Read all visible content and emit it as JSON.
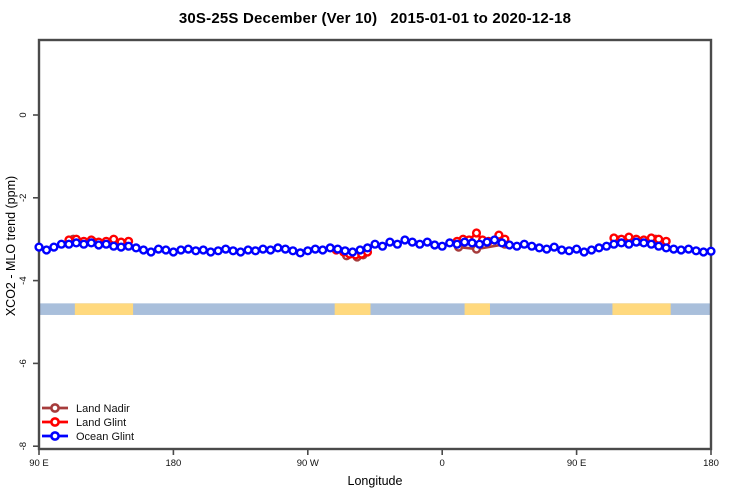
{
  "title": "30S-25S December (Ver 10)   2015-01-01 to 2020-12-18",
  "chart_data": {
    "type": "scatter",
    "title": "30S-25S December (Ver 10)   2015-01-01 to 2020-12-18",
    "xlabel": "Longitude",
    "ylabel": "XCO2 - MLO trend (ppm)",
    "x_axis_note": "longitude axis spans 450 degrees starting at 90E, wrapping east through 180, 90W, 0, 90E to 180",
    "xlim_unwrapped_deg": [
      90,
      540
    ],
    "ylim": [
      -8.1,
      1.8
    ],
    "grid": false,
    "legend_position": "bottom-left",
    "x_ticks": [
      {
        "lon": 90,
        "label": "90 E"
      },
      {
        "lon": 180,
        "label": "180"
      },
      {
        "lon": 270,
        "label": "90 W"
      },
      {
        "lon": 360,
        "label": "0"
      },
      {
        "lon": 450,
        "label": "90 E"
      },
      {
        "lon": 540,
        "label": "180"
      }
    ],
    "y_ticks": [
      {
        "v": 0,
        "label": "0"
      },
      {
        "v": -2,
        "label": "-2"
      },
      {
        "v": -4,
        "label": "-4"
      },
      {
        "v": -6,
        "label": "-6"
      },
      {
        "v": -8,
        "label": "-8"
      }
    ],
    "band": {
      "description": "surface-type strip: blue = ocean, tan = land",
      "y_range": [
        -4.55,
        -4.83
      ],
      "ocean_color": "#A9BFDB",
      "land_color": "#FFD97E",
      "land_segments_lon": [
        [
          114,
          153
        ],
        [
          288,
          312
        ],
        [
          375,
          392
        ],
        [
          474,
          513
        ]
      ]
    },
    "series": [
      {
        "name": "Land Nadir",
        "color": "#A63C3C",
        "segments": [
          [
            [
              113,
              -3.0
            ],
            [
              126,
              -3.05
            ],
            [
              138,
              -3.07
            ],
            [
              149,
              -3.09
            ]
          ],
          [
            [
              296,
              -3.4
            ],
            [
              303,
              -3.43
            ],
            [
              307,
              -3.38
            ]
          ],
          [
            [
              371,
              -3.19
            ],
            [
              383,
              -3.24
            ],
            [
              402,
              -3.12
            ]
          ],
          [
            [
              478,
              -3.02
            ],
            [
              492,
              -3.05
            ],
            [
              503,
              -3.0
            ]
          ]
        ]
      },
      {
        "name": "Land Glint",
        "color": "#FF0000",
        "segments": [
          [
            [
              110,
              -3.02
            ],
            [
              115,
              -3.0
            ],
            [
              120,
              -3.05
            ],
            [
              125,
              -3.02
            ],
            [
              130,
              -3.07
            ],
            [
              135,
              -3.05
            ],
            [
              140,
              -3.0
            ],
            [
              145,
              -3.07
            ],
            [
              150,
              -3.05
            ]
          ],
          [
            [
              289,
              -3.26
            ],
            [
              294,
              -3.31
            ],
            [
              298,
              -3.36
            ],
            [
              302,
              -3.38
            ],
            [
              306,
              -3.36
            ],
            [
              310,
              -3.31
            ]
          ],
          [
            [
              370,
              -3.05
            ],
            [
              374,
              -3.0
            ],
            [
              378,
              -3.02
            ],
            [
              383,
              -2.85
            ],
            [
              387,
              -3.02
            ],
            [
              391,
              -3.05
            ],
            [
              398,
              -2.9
            ],
            [
              402,
              -3.0
            ]
          ],
          [
            [
              475,
              -2.97
            ],
            [
              480,
              -3.0
            ],
            [
              485,
              -2.95
            ],
            [
              490,
              -3.0
            ],
            [
              495,
              -3.02
            ],
            [
              500,
              -2.97
            ],
            [
              505,
              -3.0
            ],
            [
              510,
              -3.05
            ]
          ]
        ]
      },
      {
        "name": "Ocean Glint",
        "color": "#0000FF",
        "segments": [
          [
            [
              90,
              -3.19
            ],
            [
              95,
              -3.26
            ],
            [
              100,
              -3.19
            ],
            [
              105,
              -3.12
            ],
            [
              110,
              -3.12
            ],
            [
              115,
              -3.09
            ],
            [
              120,
              -3.12
            ],
            [
              125,
              -3.09
            ],
            [
              130,
              -3.14
            ],
            [
              135,
              -3.12
            ],
            [
              140,
              -3.17
            ],
            [
              145,
              -3.19
            ],
            [
              150,
              -3.17
            ],
            [
              155,
              -3.21
            ],
            [
              160,
              -3.26
            ],
            [
              165,
              -3.31
            ],
            [
              170,
              -3.24
            ],
            [
              175,
              -3.26
            ],
            [
              180,
              -3.31
            ],
            [
              185,
              -3.26
            ],
            [
              190,
              -3.24
            ],
            [
              195,
              -3.28
            ],
            [
              200,
              -3.26
            ],
            [
              205,
              -3.31
            ],
            [
              210,
              -3.28
            ],
            [
              215,
              -3.24
            ],
            [
              220,
              -3.28
            ],
            [
              225,
              -3.31
            ],
            [
              230,
              -3.26
            ],
            [
              235,
              -3.28
            ],
            [
              240,
              -3.24
            ],
            [
              245,
              -3.26
            ],
            [
              250,
              -3.21
            ],
            [
              255,
              -3.24
            ],
            [
              260,
              -3.28
            ],
            [
              265,
              -3.33
            ],
            [
              270,
              -3.28
            ],
            [
              275,
              -3.24
            ],
            [
              280,
              -3.26
            ],
            [
              285,
              -3.21
            ],
            [
              290,
              -3.24
            ],
            [
              295,
              -3.28
            ],
            [
              300,
              -3.31
            ],
            [
              305,
              -3.26
            ],
            [
              310,
              -3.21
            ],
            [
              315,
              -3.12
            ],
            [
              320,
              -3.17
            ],
            [
              325,
              -3.07
            ],
            [
              330,
              -3.12
            ],
            [
              335,
              -3.02
            ],
            [
              340,
              -3.07
            ],
            [
              345,
              -3.12
            ],
            [
              350,
              -3.07
            ],
            [
              355,
              -3.14
            ],
            [
              360,
              -3.17
            ],
            [
              365,
              -3.09
            ],
            [
              370,
              -3.12
            ],
            [
              375,
              -3.07
            ],
            [
              380,
              -3.09
            ],
            [
              385,
              -3.12
            ],
            [
              390,
              -3.07
            ],
            [
              395,
              -3.02
            ],
            [
              400,
              -3.09
            ],
            [
              405,
              -3.14
            ],
            [
              410,
              -3.17
            ],
            [
              415,
              -3.12
            ],
            [
              420,
              -3.17
            ],
            [
              425,
              -3.21
            ],
            [
              430,
              -3.24
            ],
            [
              435,
              -3.19
            ],
            [
              440,
              -3.26
            ],
            [
              445,
              -3.28
            ],
            [
              450,
              -3.24
            ],
            [
              455,
              -3.31
            ],
            [
              460,
              -3.26
            ],
            [
              465,
              -3.21
            ],
            [
              470,
              -3.17
            ],
            [
              475,
              -3.12
            ],
            [
              480,
              -3.09
            ],
            [
              485,
              -3.12
            ],
            [
              490,
              -3.07
            ],
            [
              495,
              -3.09
            ],
            [
              500,
              -3.12
            ],
            [
              505,
              -3.17
            ],
            [
              510,
              -3.21
            ],
            [
              515,
              -3.24
            ],
            [
              520,
              -3.26
            ],
            [
              525,
              -3.24
            ],
            [
              530,
              -3.28
            ],
            [
              535,
              -3.31
            ],
            [
              540,
              -3.29
            ]
          ]
        ]
      }
    ]
  },
  "legend": {
    "items": [
      {
        "label": "Land Nadir"
      },
      {
        "label": "Land Glint"
      },
      {
        "label": "Ocean Glint"
      }
    ]
  },
  "colors": {
    "frame": "#4a4a4a",
    "tick": "#4a4a4a",
    "text": "#111111",
    "background": "#ffffff"
  }
}
